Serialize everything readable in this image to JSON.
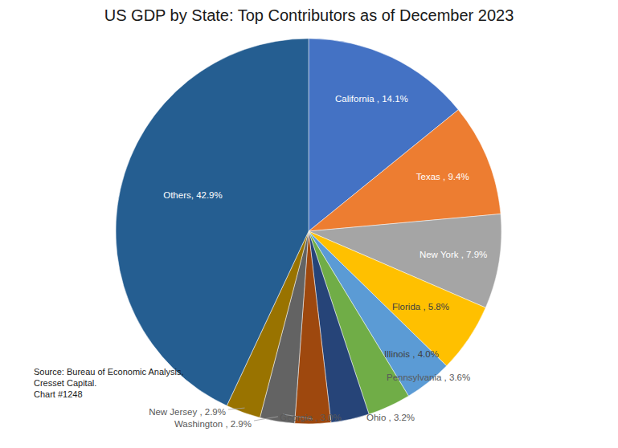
{
  "chart_data": {
    "type": "pie",
    "title": "US GDP by State: Top Contributors as of December 2023",
    "values": [
      14.1,
      9.4,
      7.9,
      5.8,
      4.0,
      3.6,
      3.2,
      3.0,
      2.9,
      2.9,
      42.9
    ],
    "value_labels": [
      "California , 14.1%",
      "Texas , 9.4%",
      "New York , 7.9%",
      "Florida , 5.8%",
      "Illinois , 4.0%",
      "Pennsylvania , 3.6%",
      "Ohio , 3.2%",
      "Georgia , 3.0%",
      "Washington , 2.9%",
      "New Jersey , 2.9%",
      "Others, 42.9%"
    ],
    "colors": [
      "#4472c4",
      "#ed7d31",
      "#a5a5a5",
      "#ffc000",
      "#5b9bd5",
      "#70ad47",
      "#264478",
      "#9e480e",
      "#636363",
      "#997300",
      "#255e91"
    ],
    "data_labels": true,
    "annotations": [
      "Source: Bureau of Economic Analysis,",
      "Cresset Capital.",
      "Chart #1248"
    ]
  }
}
